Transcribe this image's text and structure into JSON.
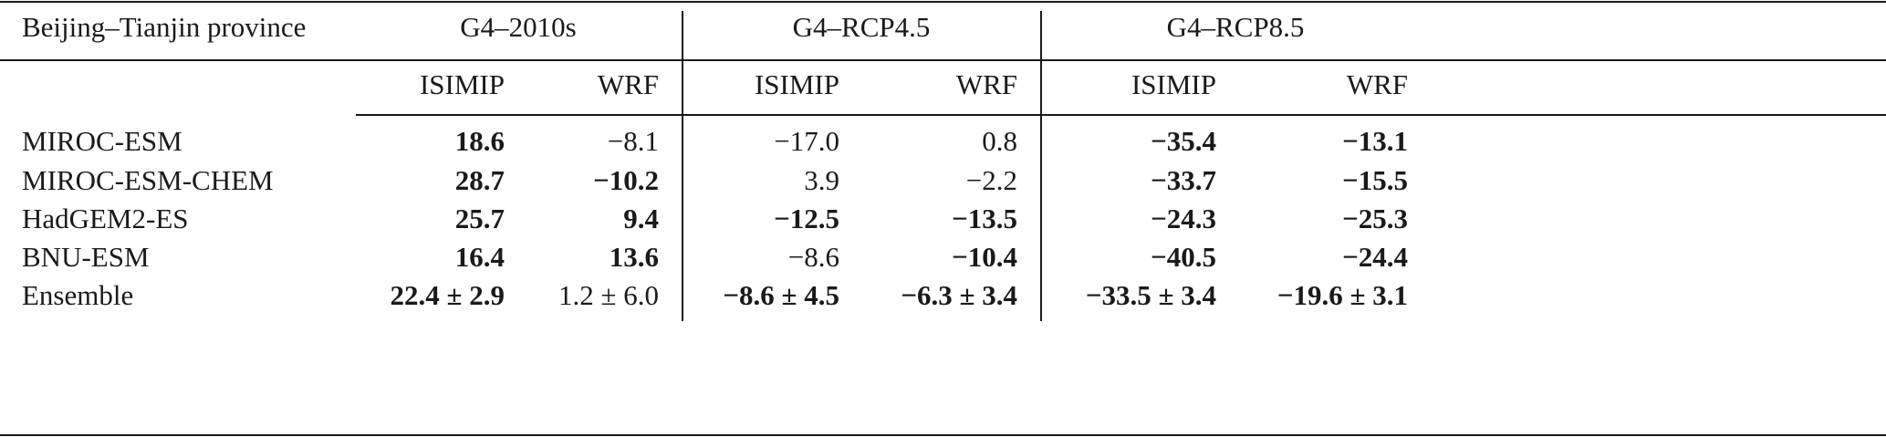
{
  "table": {
    "title": "Beijing–Tianjin province",
    "groups": [
      "G4–2010s",
      "G4–RCP4.5",
      "G4–RCP8.5"
    ],
    "subheaders": [
      "ISIMIP",
      "WRF",
      "ISIMIP",
      "WRF",
      "ISIMIP",
      "WRF"
    ],
    "rows": [
      {
        "label": "MIROC-ESM",
        "cells": [
          {
            "text": "18.6",
            "bold": true
          },
          {
            "text": "−8.1",
            "bold": false
          },
          {
            "text": "−17.0",
            "bold": false
          },
          {
            "text": "0.8",
            "bold": false
          },
          {
            "text": "−35.4",
            "bold": true
          },
          {
            "text": "−13.1",
            "bold": true
          }
        ]
      },
      {
        "label": "MIROC-ESM-CHEM",
        "cells": [
          {
            "text": "28.7",
            "bold": true
          },
          {
            "text": "−10.2",
            "bold": true
          },
          {
            "text": "3.9",
            "bold": false
          },
          {
            "text": "−2.2",
            "bold": false
          },
          {
            "text": "−33.7",
            "bold": true
          },
          {
            "text": "−15.5",
            "bold": true
          }
        ]
      },
      {
        "label": "HadGEM2-ES",
        "cells": [
          {
            "text": "25.7",
            "bold": true
          },
          {
            "text": "9.4",
            "bold": true
          },
          {
            "text": "−12.5",
            "bold": true
          },
          {
            "text": "−13.5",
            "bold": true
          },
          {
            "text": "−24.3",
            "bold": true
          },
          {
            "text": "−25.3",
            "bold": true
          }
        ]
      },
      {
        "label": "BNU-ESM",
        "cells": [
          {
            "text": "16.4",
            "bold": true
          },
          {
            "text": "13.6",
            "bold": true
          },
          {
            "text": "−8.6",
            "bold": false
          },
          {
            "text": "−10.4",
            "bold": true
          },
          {
            "text": "−40.5",
            "bold": true
          },
          {
            "text": "−24.4",
            "bold": true
          }
        ]
      },
      {
        "label": "Ensemble",
        "cells": [
          {
            "text": "22.4 ± 2.9",
            "bold": true
          },
          {
            "text": "1.2 ± 6.0",
            "bold": false
          },
          {
            "text": "−8.6 ± 4.5",
            "bold": true
          },
          {
            "text": "−6.3 ± 3.4",
            "bold": true
          },
          {
            "text": "−33.5 ± 3.4",
            "bold": true
          },
          {
            "text": "−19.6 ± 3.1",
            "bold": true
          }
        ]
      }
    ]
  }
}
